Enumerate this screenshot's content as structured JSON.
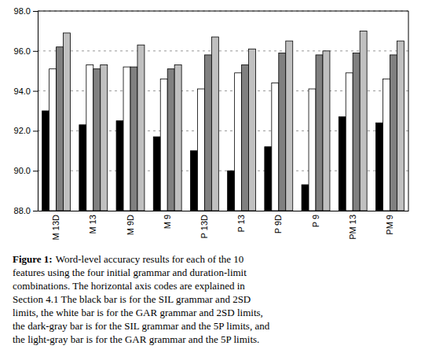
{
  "chart_data": {
    "type": "bar",
    "categories": [
      "M 13D",
      "M 13",
      "M 9D",
      "M 9",
      "P 13D",
      "P 13",
      "P 9D",
      "P 9",
      "PM 13",
      "PM 9"
    ],
    "series": [
      {
        "color": "#000000",
        "values": [
          93.0,
          92.3,
          92.5,
          91.7,
          91.0,
          90.0,
          91.2,
          89.3,
          92.7,
          92.4
        ]
      },
      {
        "color": "#ffffff",
        "values": [
          95.1,
          95.3,
          95.2,
          94.6,
          94.1,
          94.9,
          94.4,
          94.1,
          94.9,
          94.6
        ]
      },
      {
        "color": "#808080",
        "values": [
          96.2,
          95.1,
          95.2,
          95.1,
          95.8,
          95.3,
          95.9,
          95.8,
          95.9,
          95.8
        ]
      },
      {
        "color": "#c0c0c0",
        "values": [
          96.9,
          95.3,
          96.3,
          95.3,
          96.7,
          96.1,
          96.5,
          96.0,
          97.0,
          96.5
        ]
      }
    ],
    "ylim": [
      88.0,
      98.0
    ],
    "yticks": [
      {
        "value": 88.0,
        "label": "88.0"
      },
      {
        "value": 90.0,
        "label": "90.0"
      },
      {
        "value": 92.0,
        "label": "92.0"
      },
      {
        "value": 94.0,
        "label": "94.0"
      },
      {
        "value": 96.0,
        "label": "96.0"
      },
      {
        "value": 98.0,
        "label": "98.0"
      }
    ],
    "grid": true,
    "annotations": [
      "Figure 1:",
      "Word-level accuracy results for each of the 10",
      "features using the four initial grammar and duration-limit",
      "combinations. The horizontal axis codes are explained in",
      "Section 4.1 The black bar is for the SIL grammar and 2SD",
      "limits, the white bar is for the GAR grammar and 2SD limits,",
      "the dark-gray bar is for the SIL grammar and the 5P limits, and",
      "the light-gray bar is for the GAR grammar and the 5P limits."
    ]
  }
}
